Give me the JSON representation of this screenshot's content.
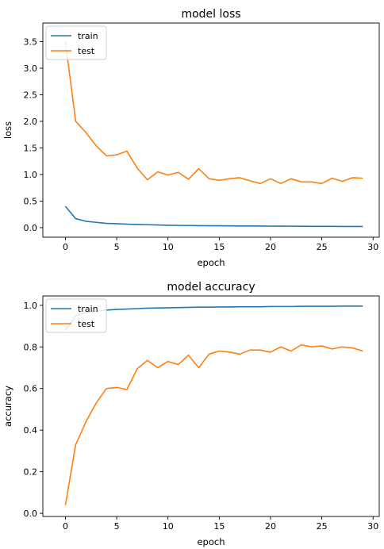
{
  "chart_data": [
    {
      "type": "line",
      "title": "model loss",
      "xlabel": "epoch",
      "ylabel": "loss",
      "xlim": [
        -2.2,
        30.6
      ],
      "ylim": [
        -0.18,
        3.85
      ],
      "xticks": [
        0,
        5,
        10,
        15,
        20,
        25,
        30
      ],
      "yticks": [
        0.0,
        0.5,
        1.0,
        1.5,
        2.0,
        2.5,
        3.0,
        3.5
      ],
      "ytick_labels": [
        "0.0",
        "0.5",
        "1.0",
        "1.5",
        "2.0",
        "2.5",
        "3.0",
        "3.5"
      ],
      "legend_position": "upper-left",
      "grid": false,
      "x": [
        0,
        1,
        2,
        3,
        4,
        5,
        6,
        7,
        8,
        9,
        10,
        11,
        12,
        13,
        14,
        15,
        16,
        17,
        18,
        19,
        20,
        21,
        22,
        23,
        24,
        25,
        26,
        27,
        28,
        29
      ],
      "series": [
        {
          "name": "train",
          "color": "#1f77b4",
          "values": [
            0.4,
            0.17,
            0.12,
            0.1,
            0.08,
            0.075,
            0.065,
            0.06,
            0.055,
            0.05,
            0.045,
            0.042,
            0.04,
            0.038,
            0.036,
            0.035,
            0.034,
            0.032,
            0.031,
            0.03,
            0.029,
            0.028,
            0.027,
            0.026,
            0.025,
            0.025,
            0.024,
            0.023,
            0.022,
            0.022
          ]
        },
        {
          "name": "test",
          "color": "#ff7f0e",
          "values": [
            3.5,
            2.0,
            1.79,
            1.54,
            1.35,
            1.37,
            1.44,
            1.12,
            0.9,
            1.05,
            0.99,
            1.04,
            0.91,
            1.11,
            0.92,
            0.89,
            0.92,
            0.94,
            0.88,
            0.83,
            0.92,
            0.83,
            0.92,
            0.86,
            0.86,
            0.83,
            0.93,
            0.87,
            0.94,
            0.93
          ]
        }
      ]
    },
    {
      "type": "line",
      "title": "model accuracy",
      "xlabel": "epoch",
      "ylabel": "accuracy",
      "xlim": [
        -2.2,
        30.6
      ],
      "ylim": [
        -0.015,
        1.045
      ],
      "xticks": [
        0,
        5,
        10,
        15,
        20,
        25,
        30
      ],
      "yticks": [
        0.0,
        0.2,
        0.4,
        0.6,
        0.8,
        1.0
      ],
      "ytick_labels": [
        "0.0",
        "0.2",
        "0.4",
        "0.6",
        "0.8",
        "1.0"
      ],
      "legend_position": "upper-left",
      "grid": false,
      "x": [
        0,
        1,
        2,
        3,
        4,
        5,
        6,
        7,
        8,
        9,
        10,
        11,
        12,
        13,
        14,
        15,
        16,
        17,
        18,
        19,
        20,
        21,
        22,
        23,
        24,
        25,
        26,
        27,
        28,
        29
      ],
      "series": [
        {
          "name": "train",
          "color": "#1f77b4",
          "values": [
            0.88,
            0.95,
            0.965,
            0.972,
            0.977,
            0.98,
            0.982,
            0.984,
            0.986,
            0.987,
            0.988,
            0.989,
            0.99,
            0.991,
            0.991,
            0.992,
            0.992,
            0.993,
            0.993,
            0.993,
            0.994,
            0.994,
            0.994,
            0.995,
            0.995,
            0.995,
            0.995,
            0.996,
            0.996,
            0.996
          ]
        },
        {
          "name": "test",
          "color": "#ff7f0e",
          "values": [
            0.04,
            0.33,
            0.44,
            0.53,
            0.6,
            0.605,
            0.595,
            0.695,
            0.735,
            0.7,
            0.73,
            0.715,
            0.76,
            0.7,
            0.765,
            0.78,
            0.775,
            0.765,
            0.785,
            0.785,
            0.775,
            0.8,
            0.78,
            0.81,
            0.8,
            0.805,
            0.79,
            0.8,
            0.795,
            0.78
          ]
        }
      ]
    }
  ]
}
